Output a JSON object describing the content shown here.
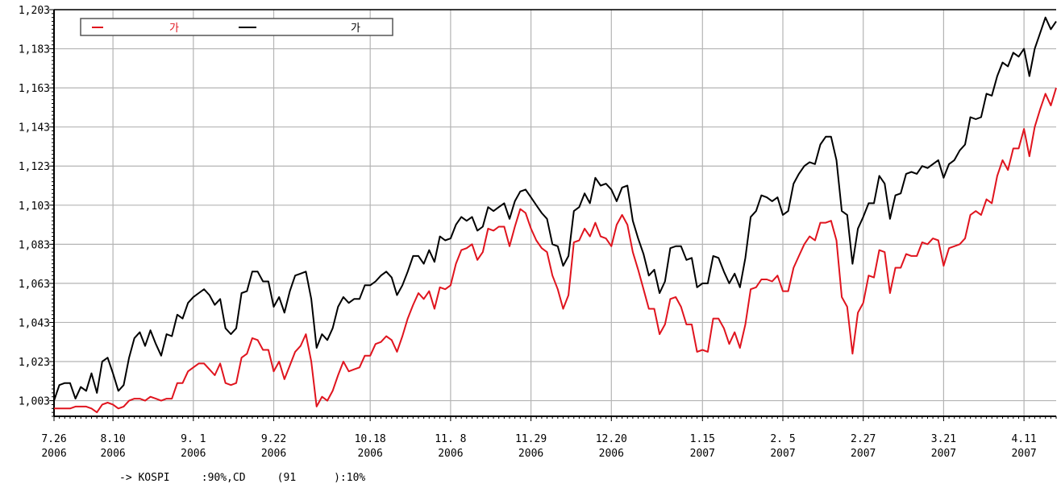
{
  "chart_data": {
    "type": "line",
    "title": "",
    "xlabel": "",
    "ylabel": "",
    "ylim": [
      995,
      1203
    ],
    "y_ticks": [
      1003,
      1023,
      1043,
      1063,
      1083,
      1103,
      1123,
      1143,
      1163,
      1183,
      1203
    ],
    "y_tick_labels": [
      "1,003",
      "1,023",
      "1,043",
      "1,063",
      "1,083",
      "1,103",
      "1,123",
      "1,143",
      "1,163",
      "1,183",
      "1,203"
    ],
    "x_tick_labels": [
      [
        "7.26",
        "2006"
      ],
      [
        "8.10",
        "2006"
      ],
      [
        "9. 1",
        "2006"
      ],
      [
        "9.22",
        "2006"
      ],
      [
        "10.18",
        "2006"
      ],
      [
        "11. 8",
        "2006"
      ],
      [
        "11.29",
        "2006"
      ],
      [
        "12.20",
        "2006"
      ],
      [
        "1.15",
        "2007"
      ],
      [
        "2. 5",
        "2007"
      ],
      [
        "2.27",
        "2007"
      ],
      [
        "3.21",
        "2007"
      ],
      [
        "4.11",
        "2007"
      ]
    ],
    "x_tick_index": [
      0,
      11,
      26,
      41,
      59,
      74,
      89,
      104,
      121,
      136,
      151,
      166,
      181
    ],
    "grid": true,
    "legend_position": "top-left",
    "series": [
      {
        "name": "가",
        "color": "#e0141e",
        "values": [
          999,
          999,
          999,
          999,
          1000,
          1000,
          1000,
          999,
          997,
          1001,
          1002,
          1001,
          999,
          1000,
          1003,
          1004,
          1004,
          1003,
          1005,
          1004,
          1003,
          1004,
          1004,
          1012,
          1012,
          1018,
          1020,
          1022,
          1022,
          1019,
          1016,
          1022,
          1012,
          1011,
          1012,
          1025,
          1027,
          1035,
          1034,
          1029,
          1029,
          1018,
          1023,
          1014,
          1021,
          1028,
          1031,
          1037,
          1023,
          1000,
          1005,
          1003,
          1008,
          1016,
          1023,
          1018,
          1019,
          1020,
          1026,
          1026,
          1032,
          1033,
          1036,
          1034,
          1028,
          1036,
          1045,
          1052,
          1058,
          1055,
          1059,
          1050,
          1061,
          1060,
          1062,
          1073,
          1080,
          1081,
          1083,
          1075,
          1079,
          1091,
          1090,
          1092,
          1092,
          1082,
          1092,
          1101,
          1099,
          1091,
          1085,
          1081,
          1079,
          1067,
          1060,
          1050,
          1057,
          1084,
          1085,
          1091,
          1087,
          1094,
          1087,
          1086,
          1082,
          1093,
          1098,
          1093,
          1079,
          1070,
          1060,
          1050,
          1050,
          1037,
          1042,
          1055,
          1056,
          1051,
          1042,
          1042,
          1028,
          1029,
          1028,
          1045,
          1045,
          1040,
          1032,
          1038,
          1030,
          1042,
          1060,
          1061,
          1065,
          1065,
          1064,
          1067,
          1059,
          1059,
          1071,
          1077,
          1083,
          1087,
          1085,
          1094,
          1094,
          1095,
          1085,
          1056,
          1051,
          1027,
          1048,
          1053,
          1067,
          1066,
          1080,
          1079,
          1058,
          1071,
          1071,
          1078,
          1077,
          1077,
          1084,
          1083,
          1086,
          1085,
          1072,
          1081,
          1082,
          1083,
          1086,
          1098,
          1100,
          1098,
          1106,
          1104,
          1118,
          1126,
          1121,
          1132,
          1132,
          1142,
          1128,
          1143,
          1152,
          1160,
          1154,
          1163
        ]
      },
      {
        "name": "가",
        "color": "#000000",
        "values": [
          1003,
          1011,
          1012,
          1012,
          1004,
          1010,
          1008,
          1017,
          1007,
          1023,
          1025,
          1017,
          1008,
          1011,
          1025,
          1035,
          1038,
          1031,
          1039,
          1032,
          1026,
          1037,
          1036,
          1047,
          1045,
          1053,
          1056,
          1058,
          1060,
          1057,
          1052,
          1055,
          1040,
          1037,
          1040,
          1058,
          1059,
          1069,
          1069,
          1064,
          1064,
          1051,
          1056,
          1048,
          1059,
          1067,
          1068,
          1069,
          1055,
          1030,
          1037,
          1034,
          1040,
          1051,
          1056,
          1053,
          1055,
          1055,
          1062,
          1062,
          1064,
          1067,
          1069,
          1066,
          1057,
          1062,
          1069,
          1077,
          1077,
          1073,
          1080,
          1074,
          1087,
          1085,
          1086,
          1093,
          1097,
          1095,
          1097,
          1090,
          1092,
          1102,
          1100,
          1102,
          1104,
          1096,
          1105,
          1110,
          1111,
          1107,
          1103,
          1099,
          1096,
          1083,
          1082,
          1072,
          1077,
          1100,
          1102,
          1109,
          1104,
          1117,
          1113,
          1114,
          1111,
          1105,
          1112,
          1113,
          1095,
          1086,
          1078,
          1067,
          1070,
          1058,
          1064,
          1081,
          1082,
          1082,
          1075,
          1076,
          1061,
          1063,
          1063,
          1077,
          1076,
          1069,
          1063,
          1068,
          1061,
          1076,
          1097,
          1100,
          1108,
          1107,
          1105,
          1107,
          1098,
          1100,
          1114,
          1119,
          1123,
          1125,
          1124,
          1134,
          1138,
          1138,
          1126,
          1100,
          1098,
          1073,
          1091,
          1097,
          1104,
          1104,
          1118,
          1114,
          1096,
          1108,
          1109,
          1119,
          1120,
          1119,
          1123,
          1122,
          1124,
          1126,
          1117,
          1124,
          1126,
          1131,
          1134,
          1148,
          1147,
          1148,
          1160,
          1159,
          1169,
          1176,
          1174,
          1181,
          1179,
          1183,
          1169,
          1183,
          1191,
          1199,
          1193,
          1197
        ]
      }
    ],
    "footnote": "-> KOSPI     :90%,CD     (91      ):10%"
  }
}
